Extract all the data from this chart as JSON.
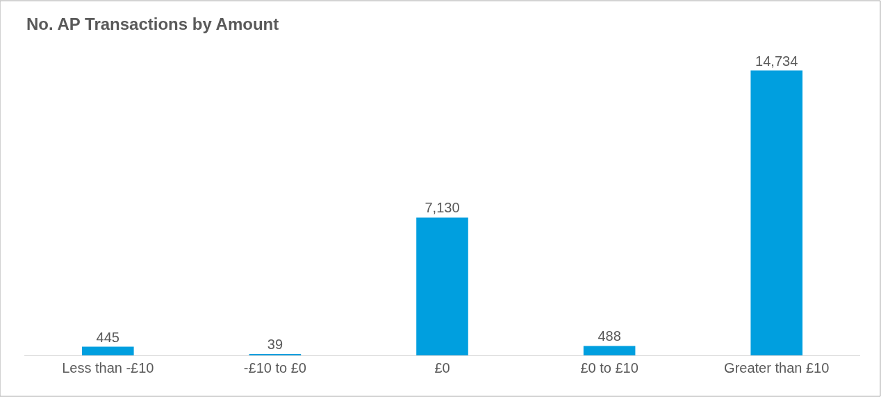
{
  "chart_data": {
    "type": "bar",
    "title": "No. AP Transactions by Amount",
    "categories": [
      "Less than -£10",
      "-£10 to £0",
      "£0",
      "£0 to £10",
      "Greater than £10"
    ],
    "values": [
      445,
      39,
      7130,
      488,
      14734
    ],
    "value_labels": [
      "445",
      "39",
      "7,130",
      "488",
      "14,734"
    ],
    "color": "#009fdf"
  }
}
